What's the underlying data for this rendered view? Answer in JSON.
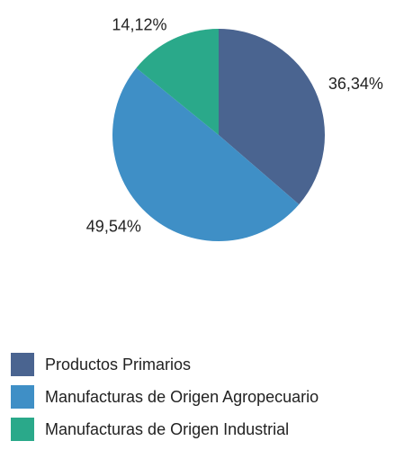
{
  "chart_data": {
    "type": "pie",
    "categories": [
      "Productos Primarios",
      "Manufacturas de Origen Agropecuario",
      "Manufacturas de Origen Industrial"
    ],
    "values": [
      36.34,
      49.54,
      14.12
    ],
    "value_labels": [
      "36,34%",
      "49,54%",
      "14,12%"
    ],
    "colors": [
      "#4a6490",
      "#3f8fc6",
      "#2aa98a"
    ],
    "legend": "bottom-left"
  }
}
